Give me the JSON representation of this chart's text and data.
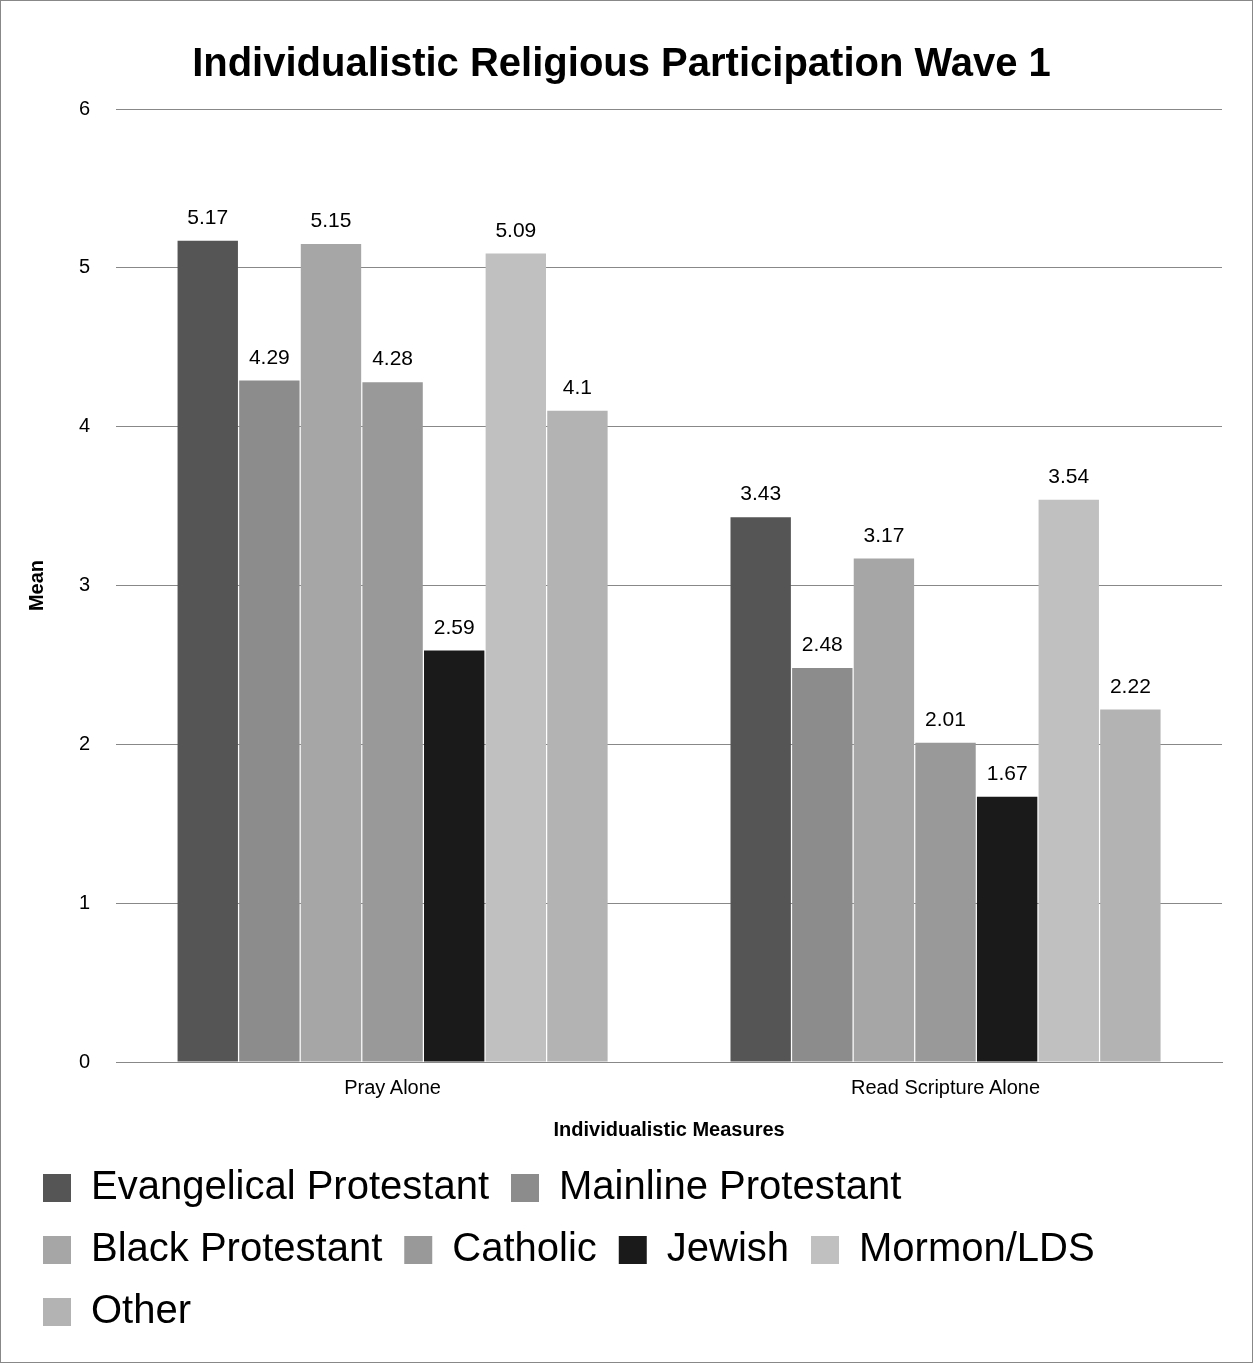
{
  "chart_data": {
    "type": "bar",
    "title": "Individualistic Religious Participation Wave 1",
    "xlabel": "Individualistic Measures",
    "ylabel": "Mean",
    "categories": [
      "Pray Alone",
      "Read Scripture Alone"
    ],
    "series": [
      {
        "name": "Evangelical Protestant",
        "color": "#555555",
        "values": [
          5.17,
          3.43
        ]
      },
      {
        "name": "Mainline Protestant",
        "color": "#8c8c8c",
        "values": [
          4.29,
          2.48
        ]
      },
      {
        "name": "Black Protestant",
        "color": "#a6a6a6",
        "values": [
          5.15,
          3.17
        ]
      },
      {
        "name": "Catholic",
        "color": "#999999",
        "values": [
          4.28,
          2.01
        ]
      },
      {
        "name": "Jewish",
        "color": "#1a1a1a",
        "values": [
          2.59,
          1.67
        ]
      },
      {
        "name": "Mormon/LDS",
        "color": "#c0c0c0",
        "values": [
          5.09,
          3.54
        ]
      },
      {
        "name": "Other",
        "color": "#b3b3b3",
        "values": [
          4.1,
          2.22
        ]
      }
    ],
    "ylim": [
      0,
      6
    ],
    "yticks": [
      0,
      1,
      2,
      3,
      4,
      5,
      6
    ],
    "grid": "y",
    "legend": "bottom",
    "data_labels": true
  }
}
